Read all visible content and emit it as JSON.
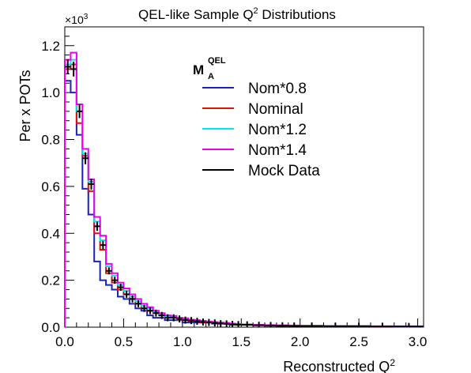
{
  "title": {
    "main": "QEL-like Sample Q",
    "sup": "2",
    "rest": " Distributions"
  },
  "chart_data": {
    "type": "line",
    "xlabel": {
      "main": "Reconstructed Q",
      "sup": "2"
    },
    "ylabel": "Per x POTs",
    "exponent_label": {
      "main": "×10",
      "sup": "3"
    },
    "xlim": [
      0,
      3.05
    ],
    "ylim": [
      0,
      1.28
    ],
    "x_ticks": [
      "0.0",
      "0.5",
      "1.0",
      "1.5",
      "2.0",
      "2.5",
      "3.0"
    ],
    "y_ticks": [
      "0.0",
      "0.2",
      "0.4",
      "0.6",
      "0.8",
      "1.0",
      "1.2"
    ],
    "grid": false,
    "legend": {
      "position": "top-right",
      "title_main": "M",
      "title_sub": "A",
      "title_sup": "QEL"
    },
    "bin_edges": [
      0,
      0.05,
      0.1,
      0.15,
      0.2,
      0.25,
      0.3,
      0.35,
      0.4,
      0.45,
      0.5,
      0.55,
      0.6,
      0.65,
      0.7,
      0.75,
      0.8,
      0.85,
      0.9,
      0.95,
      1.0,
      1.05,
      1.1,
      1.15,
      1.2,
      1.25,
      1.3,
      1.35,
      1.4,
      1.45,
      1.5,
      1.6,
      1.7,
      1.8,
      1.9,
      2.0,
      2.2,
      2.4,
      2.6,
      2.8,
      3.05
    ],
    "series": [
      {
        "name": "Nom*0.8",
        "color": "#1a22b8",
        "values": [
          1.05,
          1.0,
          0.82,
          0.59,
          0.48,
          0.28,
          0.2,
          0.18,
          0.16,
          0.13,
          0.12,
          0.1,
          0.08,
          0.07,
          0.05,
          0.04,
          0.04,
          0.03,
          0.03,
          0.03,
          0.02,
          0.02,
          0.02,
          0.02,
          0.02,
          0.015,
          0.015,
          0.015,
          0.01,
          0.01,
          0.01,
          0.008,
          0.006,
          0.005,
          0.005,
          0.004,
          0.003,
          0.003,
          0.003,
          0.002
        ]
      },
      {
        "name": "Nominal",
        "color": "#e01010",
        "values": [
          1.1,
          1.12,
          0.87,
          0.73,
          0.58,
          0.4,
          0.33,
          0.23,
          0.19,
          0.16,
          0.14,
          0.12,
          0.1,
          0.08,
          0.07,
          0.06,
          0.05,
          0.04,
          0.04,
          0.03,
          0.03,
          0.025,
          0.025,
          0.02,
          0.02,
          0.02,
          0.015,
          0.015,
          0.012,
          0.012,
          0.01,
          0.008,
          0.007,
          0.006,
          0.006,
          0.005,
          0.004,
          0.004,
          0.003,
          0.003
        ]
      },
      {
        "name": "Nom*1.2",
        "color": "#00e8ee",
        "values": [
          1.12,
          1.14,
          0.92,
          0.74,
          0.62,
          0.45,
          0.37,
          0.26,
          0.22,
          0.18,
          0.155,
          0.13,
          0.11,
          0.09,
          0.08,
          0.065,
          0.055,
          0.045,
          0.045,
          0.035,
          0.035,
          0.03,
          0.028,
          0.025,
          0.022,
          0.02,
          0.018,
          0.016,
          0.014,
          0.012,
          0.011,
          0.009,
          0.008,
          0.007,
          0.006,
          0.005,
          0.004,
          0.004,
          0.004,
          0.003
        ]
      },
      {
        "name": "Nom*1.4",
        "color": "#ee00ee",
        "values": [
          1.14,
          1.17,
          0.95,
          0.76,
          0.63,
          0.47,
          0.39,
          0.27,
          0.23,
          0.19,
          0.165,
          0.14,
          0.12,
          0.1,
          0.085,
          0.07,
          0.06,
          0.05,
          0.048,
          0.04,
          0.038,
          0.032,
          0.03,
          0.027,
          0.024,
          0.022,
          0.02,
          0.018,
          0.015,
          0.013,
          0.012,
          0.01,
          0.009,
          0.008,
          0.007,
          0.006,
          0.005,
          0.005,
          0.004,
          0.004
        ]
      },
      {
        "name": "Mock Data",
        "color": "#000000",
        "values": [
          1.11,
          1.1,
          0.92,
          0.72,
          0.61,
          0.43,
          0.35,
          0.24,
          0.2,
          0.17,
          0.14,
          0.12,
          0.1,
          0.08,
          0.07,
          0.06,
          0.05,
          0.04,
          0.04,
          0.035,
          0.03,
          0.028,
          0.025,
          0.022,
          0.02,
          0.018,
          0.015,
          0.014,
          0.012,
          0.011,
          0.01,
          0.008,
          0.007,
          0.006,
          0.005,
          0.005,
          0.004,
          0.004,
          0.003,
          0.003
        ]
      }
    ]
  }
}
